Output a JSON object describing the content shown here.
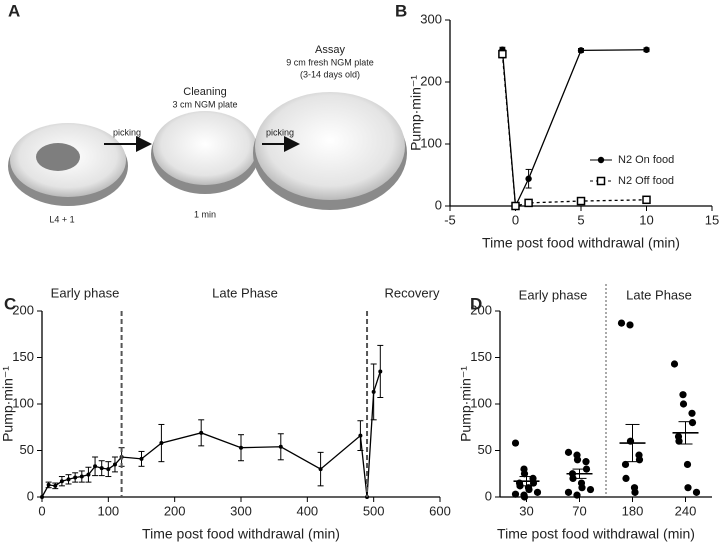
{
  "panel_labels": [
    "A",
    "B",
    "C",
    "D"
  ],
  "diagram": {
    "start": {
      "caption": "L4 + 1"
    },
    "cleaning": {
      "title": "Cleaning",
      "subtitle": "3 cm NGM plate",
      "caption": "1 min"
    },
    "assay": {
      "title": "Assay",
      "subtitle": "9 cm fresh NGM plate",
      "note": "(3-14 days old)"
    },
    "arrows": [
      "picking",
      "picking"
    ]
  },
  "chart_data": [
    {
      "type": "line",
      "xlabel": "Time post food withdrawal (min)",
      "ylabel": "Pump·min⁻¹",
      "xlim": [
        -5,
        15
      ],
      "xticks": [
        -5,
        0,
        5,
        10,
        15
      ],
      "ylim": [
        0,
        300
      ],
      "yticks": [
        0,
        100,
        200,
        300
      ],
      "series": [
        {
          "name": "N2 On food",
          "color": "#000000",
          "marker": "circle",
          "dash": false,
          "x": [
            -1,
            0,
            1,
            5,
            10
          ],
          "values": [
            252,
            0,
            44,
            251,
            252
          ],
          "error": [
            4,
            2,
            15,
            3,
            3
          ]
        },
        {
          "name": "N2 Off food",
          "color": "#000000",
          "marker": "square",
          "dash": true,
          "x": [
            -1,
            0,
            1,
            5,
            10
          ],
          "values": [
            245,
            0,
            5,
            8,
            10
          ],
          "error": [
            6,
            2,
            2,
            2,
            2
          ]
        }
      ]
    },
    {
      "type": "line",
      "xlabel": "Time post food withdrawal (min)",
      "ylabel": "Pump·min⁻¹",
      "xlim": [
        0,
        600
      ],
      "xticks": [
        0,
        100,
        200,
        300,
        400,
        500,
        600
      ],
      "ylim": [
        0,
        200
      ],
      "yticks": [
        0,
        50,
        100,
        150,
        200
      ],
      "color": "#000000",
      "x": [
        0,
        10,
        20,
        30,
        40,
        50,
        60,
        70,
        80,
        90,
        100,
        110,
        120,
        150,
        180,
        240,
        300,
        360,
        420,
        480,
        490,
        500,
        510
      ],
      "values": [
        0,
        13,
        12,
        17,
        19,
        21,
        22,
        24,
        33,
        31,
        30,
        35,
        43,
        41,
        58,
        69,
        53,
        54,
        30,
        66,
        0,
        113,
        135
      ],
      "error": [
        0,
        3,
        3,
        5,
        5,
        5,
        6,
        8,
        10,
        8,
        8,
        8,
        10,
        8,
        20,
        14,
        14,
        14,
        18,
        16,
        0,
        30,
        28
      ],
      "vlines": [
        120,
        490
      ],
      "annotations": [
        "Early phase",
        "Late Phase",
        "Recovery"
      ]
    },
    {
      "type": "dotplot",
      "xlabel": "Time post food withdrawal (min)",
      "ylabel": "Pump·min⁻¹",
      "ylim": [
        0,
        200
      ],
      "yticks": [
        0,
        50,
        100,
        150,
        200
      ],
      "color": "#000000",
      "categories": [
        "30",
        "70",
        "180",
        "240"
      ],
      "values": [
        17,
        25,
        58,
        69
      ],
      "error": [
        5,
        5,
        20,
        12
      ],
      "points": [
        [
          58,
          30,
          25,
          20,
          15,
          15,
          12,
          10,
          8,
          5,
          3,
          2,
          0
        ],
        [
          48,
          45,
          40,
          38,
          30,
          25,
          20,
          15,
          10,
          8,
          5,
          2
        ],
        [
          187,
          185,
          60,
          45,
          40,
          35,
          20,
          10,
          5
        ],
        [
          143,
          110,
          100,
          90,
          80,
          65,
          60,
          35,
          10,
          5
        ]
      ],
      "annotations": [
        "Early phase",
        "Late Phase"
      ]
    }
  ]
}
